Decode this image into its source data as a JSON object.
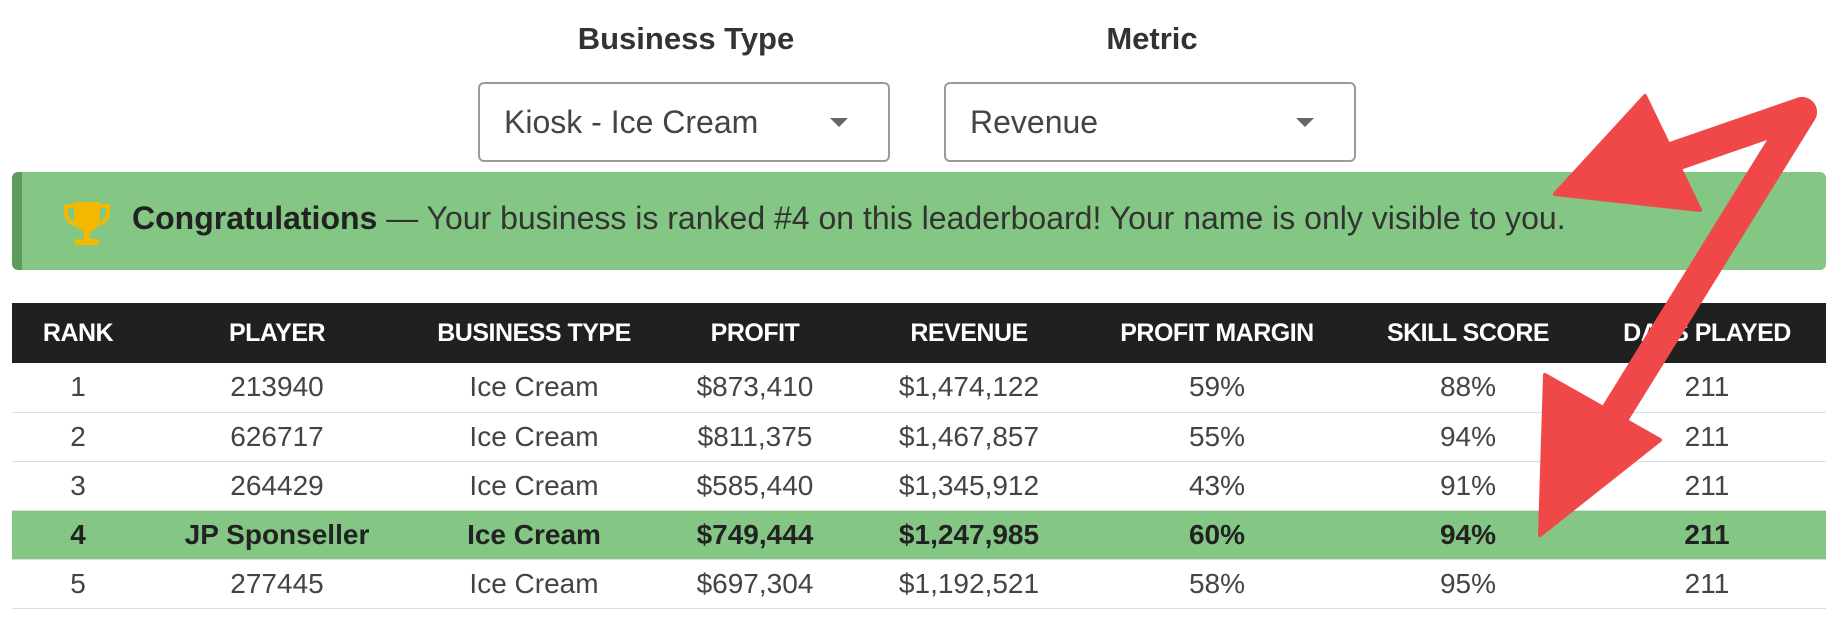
{
  "filters": {
    "business_type": {
      "label": "Business Type",
      "value": "Kiosk - Ice Cream"
    },
    "metric": {
      "label": "Metric",
      "value": "Revenue"
    }
  },
  "alert": {
    "icon": "trophy-icon",
    "title": "Congratulations",
    "message": " — Your business is ranked #4 on this leaderboard! Your name is only visible to you.",
    "color": "#84c784"
  },
  "table": {
    "headers": [
      "RANK",
      "PLAYER",
      "BUSINESS TYPE",
      "PROFIT",
      "REVENUE",
      "PROFIT MARGIN",
      "SKILL SCORE",
      "DAYS PLAYED"
    ],
    "rows": [
      [
        "1",
        "213940",
        "Ice Cream",
        "$873,410",
        "$1,474,122",
        "59%",
        "88%",
        "211"
      ],
      [
        "2",
        "626717",
        "Ice Cream",
        "$811,375",
        "$1,467,857",
        "55%",
        "94%",
        "211"
      ],
      [
        "3",
        "264429",
        "Ice Cream",
        "$585,440",
        "$1,345,912",
        "43%",
        "91%",
        "211"
      ],
      [
        "4",
        "JP Sponseller",
        "Ice Cream",
        "$749,444",
        "$1,247,985",
        "60%",
        "94%",
        "211"
      ],
      [
        "5",
        "277445",
        "Ice Cream",
        "$697,304",
        "$1,192,521",
        "58%",
        "95%",
        "211"
      ]
    ],
    "highlighted_rank": "4"
  },
  "annotation": {
    "icon": "red-arrow-icon",
    "color": "#f04848"
  }
}
